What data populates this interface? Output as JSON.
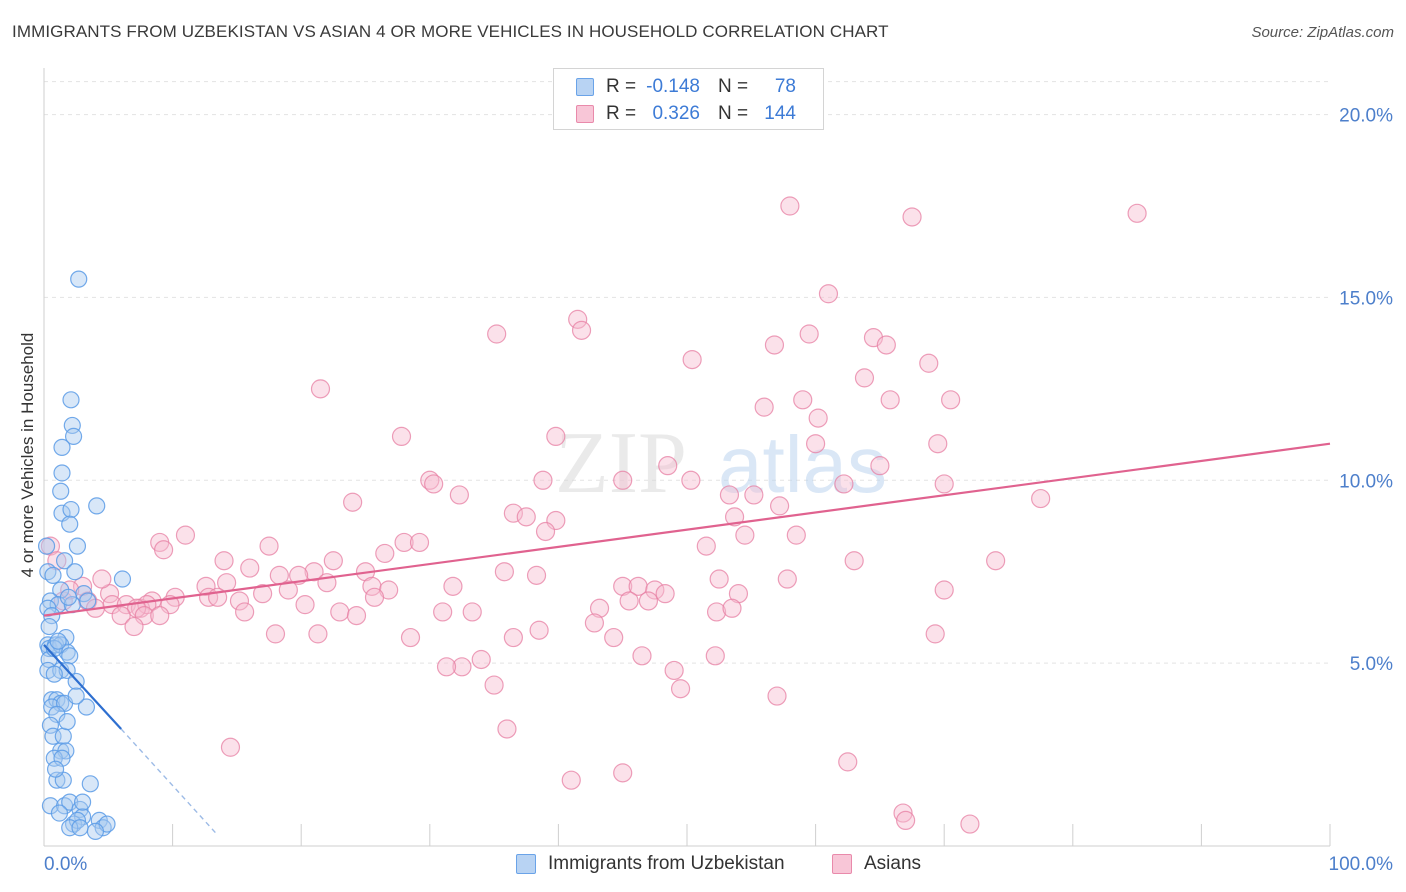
{
  "title": "IMMIGRANTS FROM UZBEKISTAN VS ASIAN 4 OR MORE VEHICLES IN HOUSEHOLD CORRELATION CHART",
  "source": "Source: ZipAtlas.com",
  "watermark": {
    "zip": "ZIP",
    "atlas": "atlas"
  },
  "legend": {
    "rows": [
      {
        "r_label": "R =",
        "r_value": "-0.148",
        "n_label": "N =",
        "n_value": "78"
      },
      {
        "r_label": "R =",
        "r_value": "0.326",
        "n_label": "N =",
        "n_value": "144"
      }
    ]
  },
  "colors": {
    "blue": "#5b9be6",
    "blue_fill": "#a9c9f0",
    "blue_line": "#2e6fd0",
    "pink": "#e77fa3",
    "pink_fill": "#f6bdd0",
    "pink_line": "#e0628f",
    "axis_text": "#4d7fcb",
    "grid": "#e3e3e3"
  },
  "chart_data": {
    "type": "scatter",
    "title": "IMMIGRANTS FROM UZBEKISTAN VS ASIAN 4 OR MORE VEHICLES IN HOUSEHOLD CORRELATION CHART",
    "xlabel": "",
    "ylabel": "4 or more Vehicles in Household",
    "xlim": [
      0,
      100
    ],
    "ylim": [
      0,
      21
    ],
    "x_ticks": [
      0,
      10,
      20,
      30,
      40,
      50,
      60,
      70,
      80,
      90,
      100
    ],
    "x_tick_labels": [
      {
        "value": 0,
        "label": "0.0%"
      },
      {
        "value": 100,
        "label": "100.0%"
      }
    ],
    "y_tick_labels": [
      {
        "value": 5,
        "label": "5.0%"
      },
      {
        "value": 10,
        "label": "10.0%"
      },
      {
        "value": 15,
        "label": "15.0%"
      },
      {
        "value": 20,
        "label": "20.0%"
      }
    ],
    "grid": true,
    "legend_position": "top-center",
    "series": [
      {
        "name": "Immigrants from Uzbekistan",
        "color": "#5b9be6",
        "trend": {
          "x": [
            0,
            6
          ],
          "y": [
            5.5,
            3.2
          ],
          "dashed_to": [
            13.5,
            0.3
          ]
        },
        "points": [
          [
            2.7,
            15.5
          ],
          [
            2.1,
            12.2
          ],
          [
            2.2,
            11.5
          ],
          [
            2.3,
            11.2
          ],
          [
            1.4,
            10.9
          ],
          [
            1.4,
            10.2
          ],
          [
            1.3,
            9.7
          ],
          [
            4.1,
            9.3
          ],
          [
            1.4,
            9.1
          ],
          [
            2.1,
            9.2
          ],
          [
            2.0,
            8.8
          ],
          [
            2.6,
            8.2
          ],
          [
            0.2,
            8.2
          ],
          [
            1.6,
            7.8
          ],
          [
            2.4,
            7.5
          ],
          [
            0.3,
            7.5
          ],
          [
            0.7,
            7.4
          ],
          [
            6.1,
            7.3
          ],
          [
            1.3,
            7.0
          ],
          [
            3.1,
            6.9
          ],
          [
            0.5,
            6.7
          ],
          [
            1.1,
            6.6
          ],
          [
            2.2,
            6.6
          ],
          [
            0.3,
            6.5
          ],
          [
            0.6,
            6.3
          ],
          [
            1.7,
            5.7
          ],
          [
            0.3,
            5.5
          ],
          [
            0.4,
            5.4
          ],
          [
            0.9,
            5.5
          ],
          [
            1.3,
            5.5
          ],
          [
            1.8,
            5.3
          ],
          [
            2.0,
            5.2
          ],
          [
            0.4,
            5.1
          ],
          [
            0.3,
            4.8
          ],
          [
            1.3,
            4.8
          ],
          [
            1.8,
            4.8
          ],
          [
            0.8,
            4.7
          ],
          [
            2.5,
            4.5
          ],
          [
            0.6,
            4.0
          ],
          [
            1.0,
            4.0
          ],
          [
            1.3,
            3.9
          ],
          [
            0.6,
            3.8
          ],
          [
            1.6,
            3.9
          ],
          [
            3.3,
            3.8
          ],
          [
            1.0,
            3.6
          ],
          [
            0.5,
            3.3
          ],
          [
            0.7,
            3.0
          ],
          [
            1.5,
            3.0
          ],
          [
            1.3,
            2.6
          ],
          [
            1.7,
            2.6
          ],
          [
            0.8,
            2.4
          ],
          [
            1.4,
            2.4
          ],
          [
            1.0,
            1.8
          ],
          [
            1.5,
            1.8
          ],
          [
            3.6,
            1.7
          ],
          [
            0.5,
            1.1
          ],
          [
            1.6,
            1.1
          ],
          [
            2.0,
            1.2
          ],
          [
            2.8,
            1.0
          ],
          [
            3.0,
            0.8
          ],
          [
            2.3,
            0.6
          ],
          [
            2.6,
            0.7
          ],
          [
            4.3,
            0.7
          ],
          [
            2.0,
            0.5
          ],
          [
            2.8,
            0.5
          ],
          [
            4.6,
            0.5
          ],
          [
            4.9,
            0.6
          ],
          [
            0.4,
            6.0
          ],
          [
            1.9,
            6.8
          ],
          [
            3.4,
            6.7
          ],
          [
            0.8,
            5.4
          ],
          [
            1.1,
            5.6
          ],
          [
            2.5,
            4.1
          ],
          [
            1.8,
            3.4
          ],
          [
            0.9,
            2.1
          ],
          [
            3.0,
            1.2
          ],
          [
            1.2,
            0.9
          ],
          [
            4.0,
            0.4
          ]
        ]
      },
      {
        "name": "Asians",
        "color": "#e77fa3",
        "trend": {
          "x": [
            0,
            100
          ],
          "y": [
            6.3,
            11.0
          ]
        },
        "points": [
          [
            58.0,
            17.5
          ],
          [
            67.5,
            17.2
          ],
          [
            85.0,
            17.3
          ],
          [
            61.0,
            15.1
          ],
          [
            41.5,
            14.4
          ],
          [
            41.8,
            14.1
          ],
          [
            35.2,
            14.0
          ],
          [
            59.5,
            14.0
          ],
          [
            64.5,
            13.9
          ],
          [
            56.8,
            13.7
          ],
          [
            65.5,
            13.7
          ],
          [
            50.4,
            13.3
          ],
          [
            68.8,
            13.2
          ],
          [
            63.8,
            12.8
          ],
          [
            21.5,
            12.5
          ],
          [
            59.0,
            12.2
          ],
          [
            65.8,
            12.2
          ],
          [
            70.5,
            12.2
          ],
          [
            56.0,
            12.0
          ],
          [
            60.2,
            11.7
          ],
          [
            27.8,
            11.2
          ],
          [
            39.8,
            11.2
          ],
          [
            60.0,
            11.0
          ],
          [
            69.5,
            11.0
          ],
          [
            48.5,
            10.4
          ],
          [
            65.0,
            10.4
          ],
          [
            30.0,
            10.0
          ],
          [
            38.8,
            10.0
          ],
          [
            45.0,
            10.0
          ],
          [
            50.3,
            10.0
          ],
          [
            62.2,
            9.9
          ],
          [
            70.0,
            9.9
          ],
          [
            30.3,
            9.9
          ],
          [
            32.3,
            9.6
          ],
          [
            53.3,
            9.6
          ],
          [
            55.2,
            9.6
          ],
          [
            24.0,
            9.4
          ],
          [
            57.2,
            9.3
          ],
          [
            77.5,
            9.5
          ],
          [
            36.5,
            9.1
          ],
          [
            37.5,
            9.0
          ],
          [
            53.7,
            9.0
          ],
          [
            39.8,
            8.9
          ],
          [
            39.0,
            8.6
          ],
          [
            11.0,
            8.5
          ],
          [
            54.5,
            8.5
          ],
          [
            58.5,
            8.5
          ],
          [
            9.0,
            8.3
          ],
          [
            28.0,
            8.3
          ],
          [
            29.2,
            8.3
          ],
          [
            17.5,
            8.2
          ],
          [
            9.3,
            8.1
          ],
          [
            51.5,
            8.2
          ],
          [
            26.5,
            8.0
          ],
          [
            14.0,
            7.8
          ],
          [
            22.5,
            7.8
          ],
          [
            63.0,
            7.8
          ],
          [
            74.0,
            7.8
          ],
          [
            16.0,
            7.6
          ],
          [
            21.0,
            7.5
          ],
          [
            25.0,
            7.5
          ],
          [
            35.8,
            7.5
          ],
          [
            38.3,
            7.4
          ],
          [
            18.3,
            7.4
          ],
          [
            19.8,
            7.4
          ],
          [
            22.0,
            7.2
          ],
          [
            52.5,
            7.3
          ],
          [
            57.8,
            7.3
          ],
          [
            12.6,
            7.1
          ],
          [
            14.2,
            7.2
          ],
          [
            25.5,
            7.1
          ],
          [
            31.8,
            7.1
          ],
          [
            45.0,
            7.1
          ],
          [
            46.2,
            7.1
          ],
          [
            47.5,
            7.0
          ],
          [
            26.8,
            7.0
          ],
          [
            19.0,
            7.0
          ],
          [
            48.3,
            6.9
          ],
          [
            70.0,
            7.0
          ],
          [
            12.8,
            6.8
          ],
          [
            13.5,
            6.8
          ],
          [
            17.0,
            6.9
          ],
          [
            54.0,
            6.9
          ],
          [
            3.4,
            6.7
          ],
          [
            5.1,
            6.9
          ],
          [
            8.4,
            6.7
          ],
          [
            10.2,
            6.8
          ],
          [
            25.7,
            6.8
          ],
          [
            45.5,
            6.7
          ],
          [
            47.0,
            6.7
          ],
          [
            4.0,
            6.5
          ],
          [
            5.3,
            6.6
          ],
          [
            6.4,
            6.6
          ],
          [
            7.5,
            6.5
          ],
          [
            8.0,
            6.6
          ],
          [
            9.8,
            6.6
          ],
          [
            15.2,
            6.7
          ],
          [
            20.3,
            6.6
          ],
          [
            43.2,
            6.5
          ],
          [
            7.2,
            6.5
          ],
          [
            15.6,
            6.4
          ],
          [
            23.0,
            6.4
          ],
          [
            31.0,
            6.4
          ],
          [
            33.3,
            6.4
          ],
          [
            52.3,
            6.4
          ],
          [
            53.5,
            6.5
          ],
          [
            6.0,
            6.3
          ],
          [
            7.8,
            6.3
          ],
          [
            9.0,
            6.3
          ],
          [
            24.3,
            6.3
          ],
          [
            42.8,
            6.1
          ],
          [
            7.0,
            6.0
          ],
          [
            18.0,
            5.8
          ],
          [
            21.3,
            5.8
          ],
          [
            38.5,
            5.9
          ],
          [
            69.3,
            5.8
          ],
          [
            28.5,
            5.7
          ],
          [
            36.5,
            5.7
          ],
          [
            44.3,
            5.7
          ],
          [
            46.5,
            5.2
          ],
          [
            52.2,
            5.2
          ],
          [
            32.5,
            4.9
          ],
          [
            34.0,
            5.1
          ],
          [
            31.3,
            4.9
          ],
          [
            49.0,
            4.8
          ],
          [
            35.0,
            4.4
          ],
          [
            49.5,
            4.3
          ],
          [
            57.0,
            4.1
          ],
          [
            36.0,
            3.2
          ],
          [
            14.5,
            2.7
          ],
          [
            62.5,
            2.3
          ],
          [
            45.0,
            2.0
          ],
          [
            41.0,
            1.8
          ],
          [
            66.8,
            0.9
          ],
          [
            67.0,
            0.7
          ],
          [
            72.0,
            0.6
          ],
          [
            3.0,
            7.1
          ],
          [
            4.5,
            7.3
          ],
          [
            1.5,
            6.7
          ],
          [
            2.0,
            7.0
          ],
          [
            0.5,
            8.2
          ],
          [
            1.0,
            7.8
          ]
        ]
      }
    ]
  }
}
